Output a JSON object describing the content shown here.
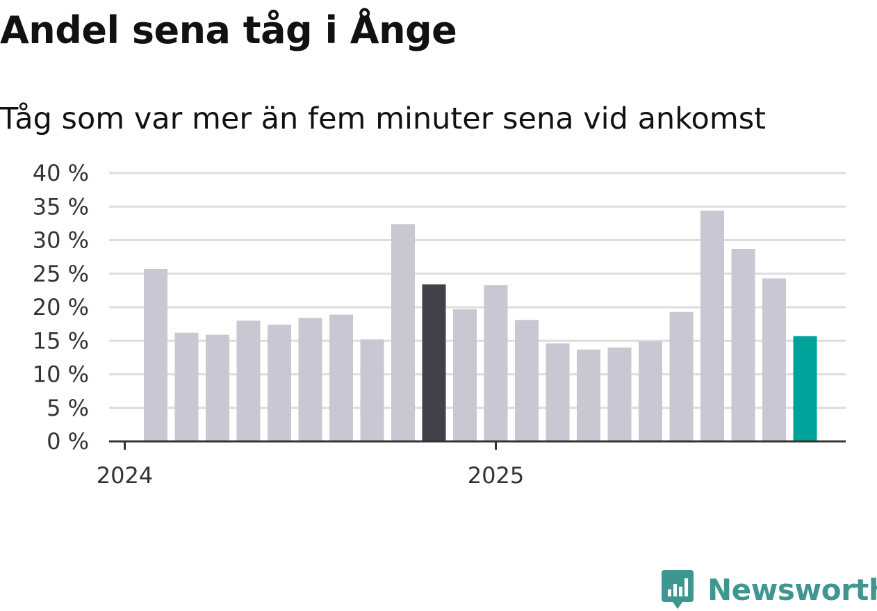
{
  "header": {
    "title": "Andel sena tåg i Ånge",
    "subtitle": "Tåg som var mer än fem minuter sena vid ankomst"
  },
  "brand": {
    "name": "Newsworthy",
    "icon": "newsworthy-logo-icon",
    "color": "#3f9690"
  },
  "colors": {
    "bar": "#c8c7d2",
    "highlight_previous": "#424049",
    "highlight_latest": "#00a39a",
    "grid": "#dddddd",
    "axis": "#333333"
  },
  "chart_data": {
    "type": "bar",
    "title": "Andel sena tåg i Ånge",
    "subtitle": "Tåg som var mer än fem minuter sena vid ankomst",
    "x": [
      "2024-01",
      "2024-02",
      "2024-03",
      "2024-04",
      "2024-05",
      "2024-06",
      "2024-07",
      "2024-08",
      "2024-09",
      "2024-10",
      "2024-11",
      "2024-12",
      "2025-01",
      "2025-02",
      "2025-03",
      "2025-04",
      "2025-05",
      "2025-06",
      "2025-07",
      "2025-08",
      "2025-09",
      "2025-10"
    ],
    "values": [
      25.7,
      16.2,
      15.9,
      18.0,
      17.4,
      18.4,
      18.9,
      15.2,
      32.4,
      23.4,
      19.7,
      23.3,
      18.1,
      14.6,
      13.7,
      14.0,
      14.9,
      19.3,
      34.4,
      28.7,
      24.3,
      15.7
    ],
    "highlight": {
      "2024-10": "previous",
      "2025-10": "latest"
    },
    "x_tick_labels": [
      "2024",
      "2025"
    ],
    "y_ticks": [
      0,
      5,
      10,
      15,
      20,
      25,
      30,
      35,
      40
    ],
    "y_tick_labels": [
      "0 %",
      "5 %",
      "10 %",
      "15 %",
      "20 %",
      "25 %",
      "30 %",
      "35 %",
      "40 %"
    ],
    "ylim": [
      0,
      40
    ],
    "grid": true,
    "legend": "none"
  }
}
